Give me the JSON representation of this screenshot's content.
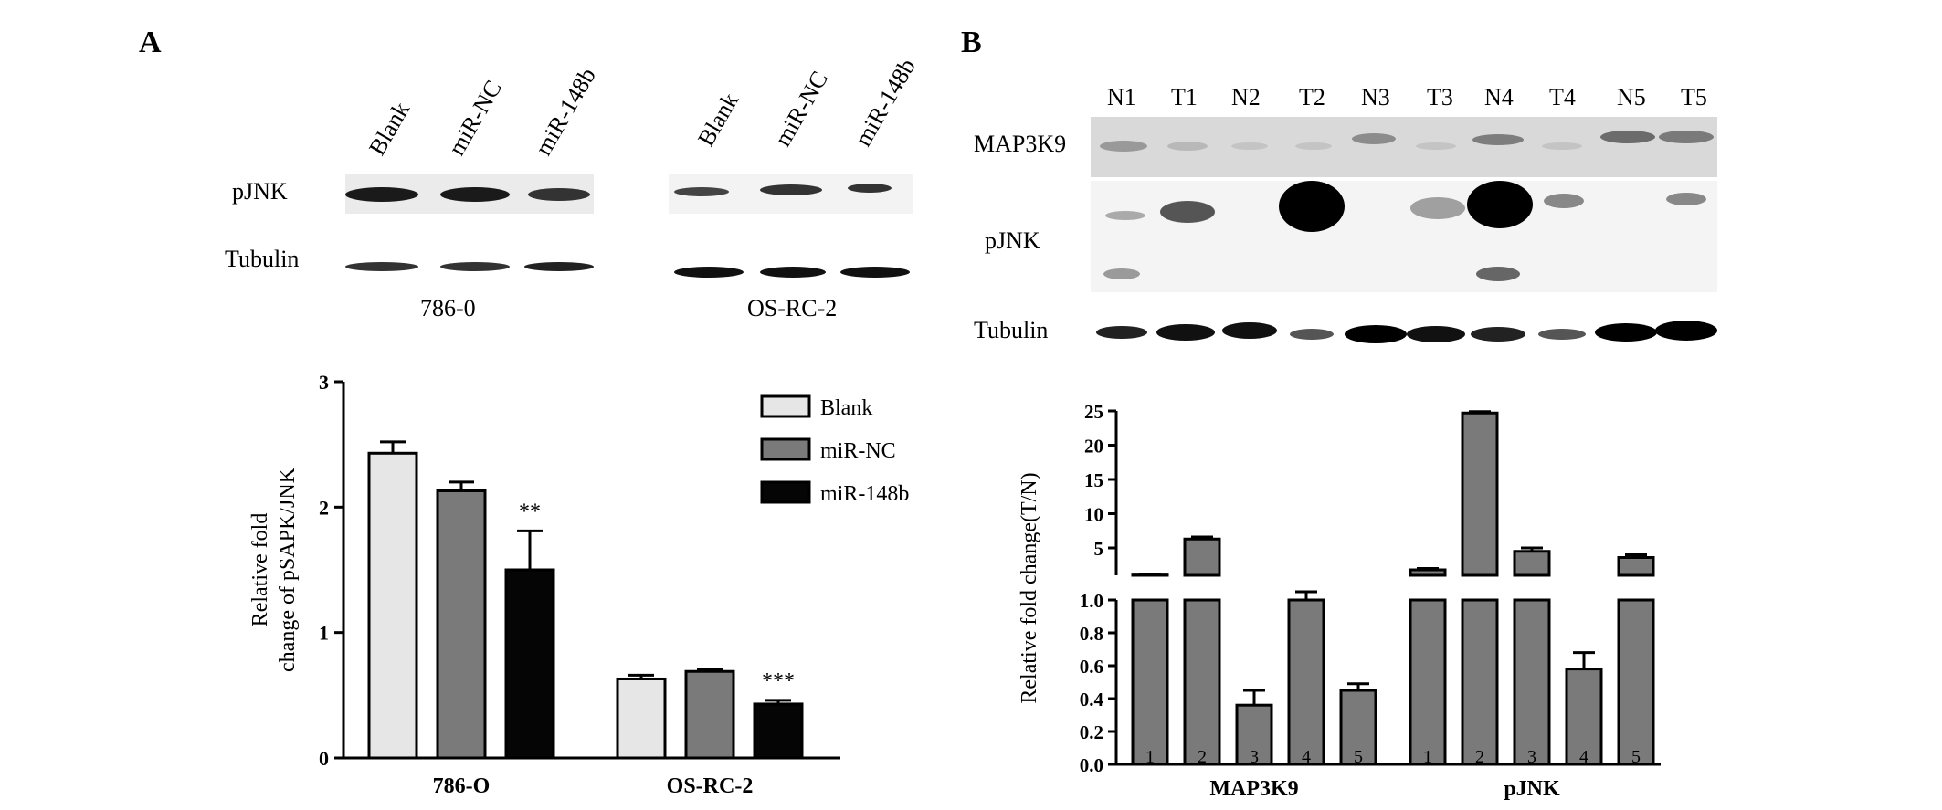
{
  "panel_a": {
    "letter": "A",
    "blot": {
      "lanes": [
        "Blank",
        "miR-NC",
        "miR-148b"
      ],
      "rows": [
        "pJNK",
        "Tubulin"
      ],
      "cell_lines": [
        "786-0",
        "OS-RC-2"
      ]
    }
  },
  "panel_b": {
    "letter": "B",
    "blot": {
      "lanes": [
        "N1",
        "T1",
        "N2",
        "T2",
        "N3",
        "T3",
        "N4",
        "T4",
        "N5",
        "T5"
      ],
      "rows": [
        "MAP3K9",
        "pJNK",
        "Tubulin"
      ]
    }
  },
  "colors": {
    "blank": "#e6e6e6",
    "mir_nc": "#7a7a7a",
    "mir_148b": "#050505",
    "b_bars": "#7a7a7a",
    "blot_bg": "#dcdcdc"
  },
  "chart_data": [
    {
      "type": "bar",
      "panel": "A",
      "categories": [
        "786-O",
        "OS-RC-2"
      ],
      "series": [
        {
          "name": "Blank",
          "values": [
            2.43,
            0.63
          ],
          "errors": [
            0.09,
            0.03
          ]
        },
        {
          "name": "miR-NC",
          "values": [
            2.13,
            0.69
          ],
          "errors": [
            0.07,
            0.02
          ]
        },
        {
          "name": "miR-148b",
          "values": [
            1.5,
            0.43
          ],
          "errors": [
            0.31,
            0.03
          ]
        }
      ],
      "significance": [
        "**",
        "***"
      ],
      "ylabel_line1": "Relative fold",
      "ylabel_line2": "change of pSAPK/JNK",
      "ylim": [
        0,
        3
      ],
      "yticks": [
        "0",
        "1",
        "2",
        "3"
      ],
      "legend_position": "top-right"
    },
    {
      "type": "bar",
      "panel": "B",
      "groups": [
        "MAP3K9",
        "pJNK"
      ],
      "bar_labels": [
        "1",
        "2",
        "3",
        "4",
        "5"
      ],
      "series": [
        {
          "values": [
            1.05,
            6.3,
            0.36,
            1.0,
            0.45
          ],
          "errors": [
            0.05,
            0.3,
            0.09,
            0.05,
            0.04
          ]
        },
        {
          "values": [
            1.8,
            24.7,
            4.5,
            0.58,
            3.6
          ],
          "errors": [
            0.2,
            0.2,
            0.5,
            0.1,
            0.4
          ]
        }
      ],
      "ylabel": "Relative fold change(T/N)",
      "axis_break": true,
      "ylim_lower": [
        0,
        1.0
      ],
      "ylim_upper": [
        1,
        25
      ],
      "yticks_lower": [
        "0.0",
        "0.2",
        "0.4",
        "0.6",
        "0.8",
        "1.0"
      ],
      "yticks_upper": [
        "5",
        "10",
        "15",
        "20",
        "25"
      ]
    }
  ]
}
